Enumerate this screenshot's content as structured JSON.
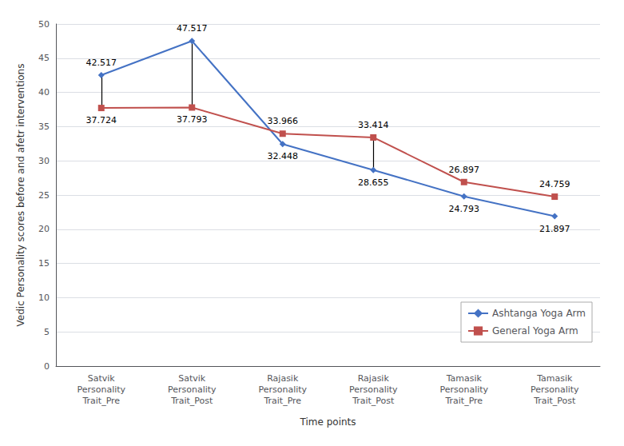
{
  "chart_data": {
    "type": "line",
    "xlabel": "Time points",
    "ylabel": "Vedic Personality scores before and afetr interventions",
    "categories": [
      "Satvik\nPersonality\nTrait_Pre",
      "Satvik\nPersonality\nTrait_Post",
      "Rajasik\nPersonality\nTrait_Pre",
      "Rajasik\nPersonality\nTrait_Post",
      "Tamasik\nPersonality\nTrait_Pre",
      "Tamasik\nPersonality\nTrait_Post"
    ],
    "series": [
      {
        "name": "Ashtanga Yoga Arm",
        "color": "#4472C4",
        "marker": "diamond",
        "values": [
          42.517,
          47.517,
          32.448,
          28.655,
          24.793,
          21.897
        ]
      },
      {
        "name": "General Yoga Arm",
        "color": "#C0504D",
        "marker": "square",
        "values": [
          37.724,
          37.793,
          33.966,
          33.414,
          26.897,
          24.759
        ]
      }
    ],
    "vertical_lines": [
      {
        "x": "Satvik\nPersonality\nTrait_Pre",
        "y_bottom": 37.724,
        "y_top": 42.517
      },
      {
        "x": "Satvik\nPersonality\nTrait_Post",
        "y_bottom": 37.793,
        "y_top": 47.517
      },
      {
        "x": "Rajasik\nPersonality\nTrait_Post",
        "y_bottom": 28.655,
        "y_top": 33.414
      }
    ],
    "ylim": [
      0,
      50
    ],
    "yticks": [
      0,
      5,
      10,
      15,
      20,
      25,
      30,
      35,
      40,
      45,
      50
    ],
    "grid": true,
    "legend": "lower right",
    "data_labels": true
  }
}
